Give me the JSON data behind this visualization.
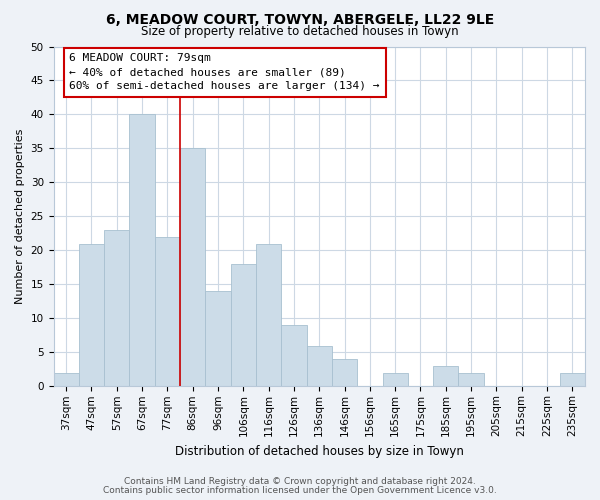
{
  "title": "6, MEADOW COURT, TOWYN, ABERGELE, LL22 9LE",
  "subtitle": "Size of property relative to detached houses in Towyn",
  "xlabel": "Distribution of detached houses by size in Towyn",
  "ylabel": "Number of detached properties",
  "bar_labels": [
    "37sqm",
    "47sqm",
    "57sqm",
    "67sqm",
    "77sqm",
    "86sqm",
    "96sqm",
    "106sqm",
    "116sqm",
    "126sqm",
    "136sqm",
    "146sqm",
    "156sqm",
    "165sqm",
    "175sqm",
    "185sqm",
    "195sqm",
    "205sqm",
    "215sqm",
    "225sqm",
    "235sqm"
  ],
  "bar_values": [
    2,
    21,
    23,
    40,
    22,
    35,
    14,
    18,
    21,
    9,
    6,
    4,
    0,
    2,
    0,
    3,
    2,
    0,
    0,
    0,
    2
  ],
  "bar_color": "#ccdce8",
  "bar_edge_color": "#a8c0d0",
  "vline_color": "#cc0000",
  "vline_x_index": 4,
  "marker_label": "6 MEADOW COURT: 79sqm",
  "annotation_line1": "← 40% of detached houses are smaller (89)",
  "annotation_line2": "60% of semi-detached houses are larger (134) →",
  "ylim": [
    0,
    50
  ],
  "yticks": [
    0,
    5,
    10,
    15,
    20,
    25,
    30,
    35,
    40,
    45,
    50
  ],
  "footnote1": "Contains HM Land Registry data © Crown copyright and database right 2024.",
  "footnote2": "Contains public sector information licensed under the Open Government Licence v3.0.",
  "bg_color": "#eef2f7",
  "plot_bg_color": "#ffffff",
  "grid_color": "#cdd8e4",
  "title_fontsize": 10,
  "subtitle_fontsize": 8.5,
  "xlabel_fontsize": 8.5,
  "ylabel_fontsize": 8,
  "tick_fontsize": 7.5,
  "annot_fontsize": 8,
  "footnote_fontsize": 6.5
}
